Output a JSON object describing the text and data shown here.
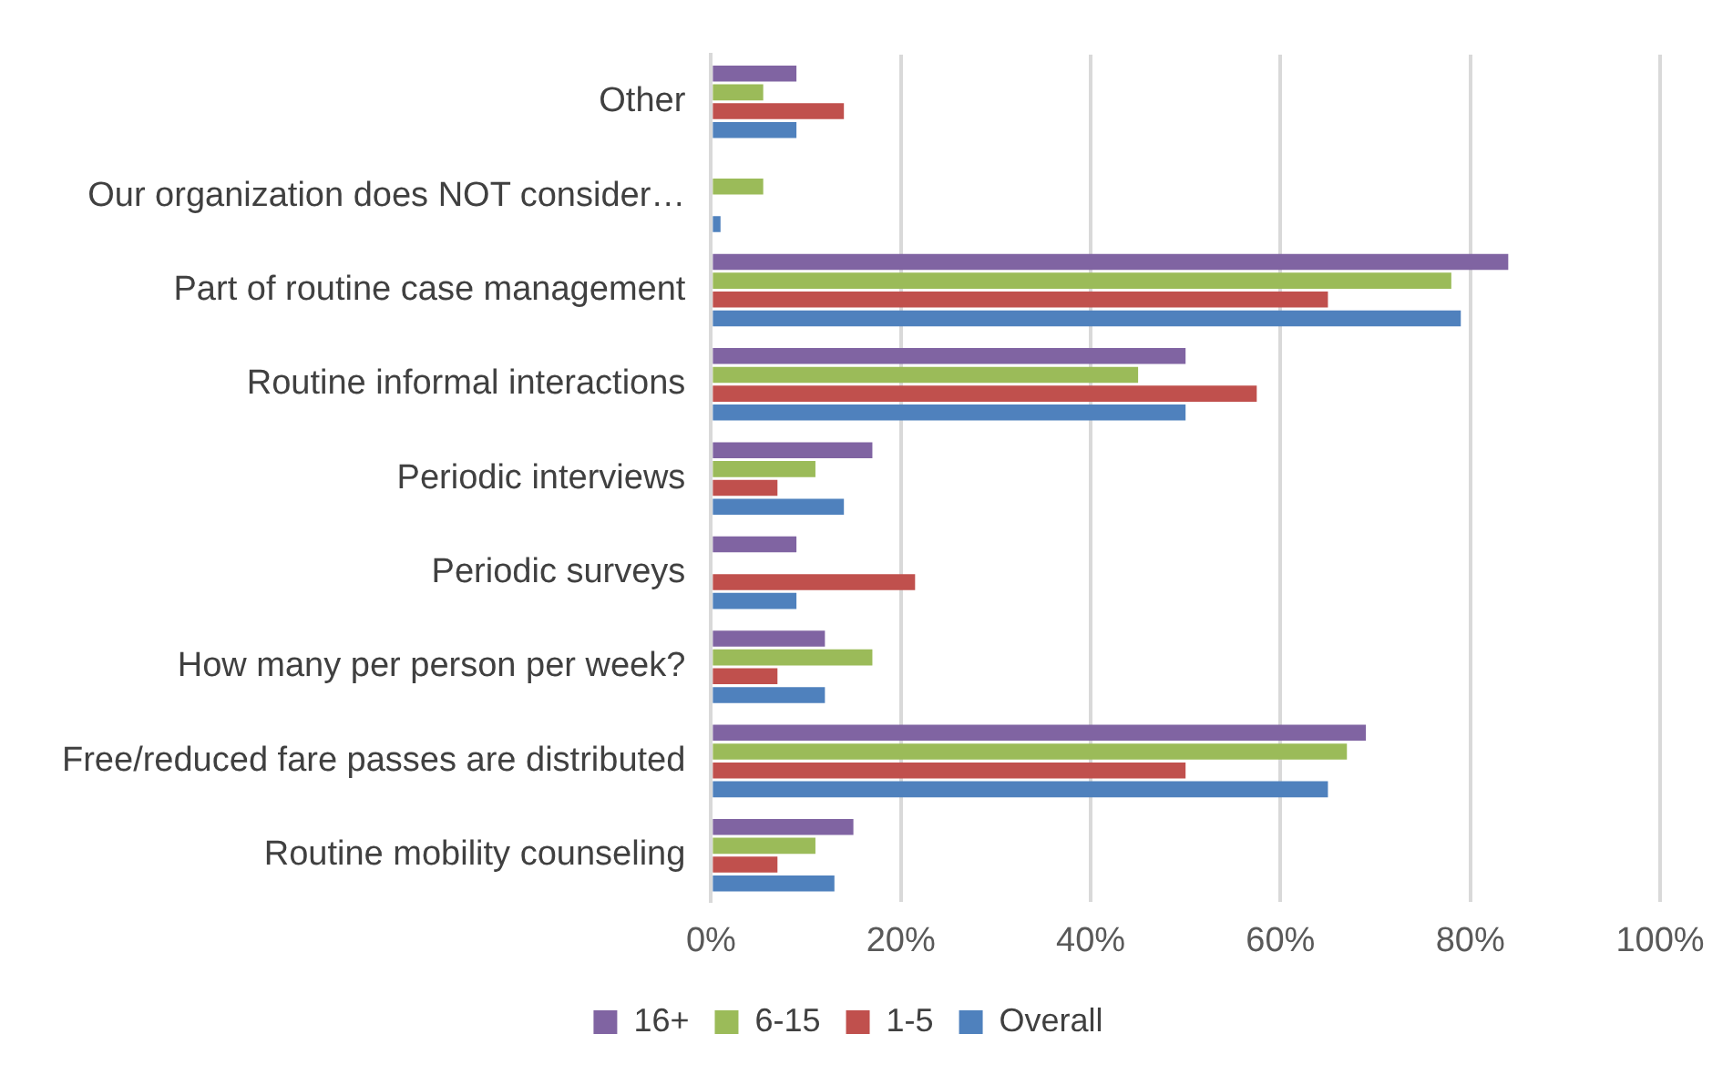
{
  "chart_data": {
    "type": "bar",
    "orientation": "horizontal",
    "categories": [
      "Other",
      "Our organization does NOT consider…",
      "Part of routine case management",
      "Routine informal interactions",
      "Periodic interviews",
      "Periodic surveys",
      "How many per person per week?",
      "Free/reduced fare passes are distributed",
      "Routine mobility counseling"
    ],
    "series": [
      {
        "name": "16+",
        "color": "#8064a2",
        "values": [
          9,
          0,
          84,
          50,
          17,
          9,
          12,
          69,
          15
        ]
      },
      {
        "name": "6-15",
        "color": "#9bbb59",
        "values": [
          5.5,
          5.5,
          78,
          45,
          11,
          0,
          17,
          67,
          11
        ]
      },
      {
        "name": "1-5",
        "color": "#c0504d",
        "values": [
          14,
          0,
          65,
          57.5,
          7,
          21.5,
          7,
          50,
          7
        ]
      },
      {
        "name": "Overall",
        "color": "#4f81bd",
        "values": [
          9,
          1,
          79,
          50,
          14,
          9,
          12,
          65,
          13
        ]
      }
    ],
    "xlim": [
      0,
      100
    ],
    "xticks": [
      {
        "value": 0,
        "label": "0%"
      },
      {
        "value": 20,
        "label": "20%"
      },
      {
        "value": 40,
        "label": "40%"
      },
      {
        "value": 60,
        "label": "60%"
      },
      {
        "value": 80,
        "label": "80%"
      },
      {
        "value": 100,
        "label": "100%"
      }
    ],
    "grid": "x",
    "legend": "bottom"
  }
}
